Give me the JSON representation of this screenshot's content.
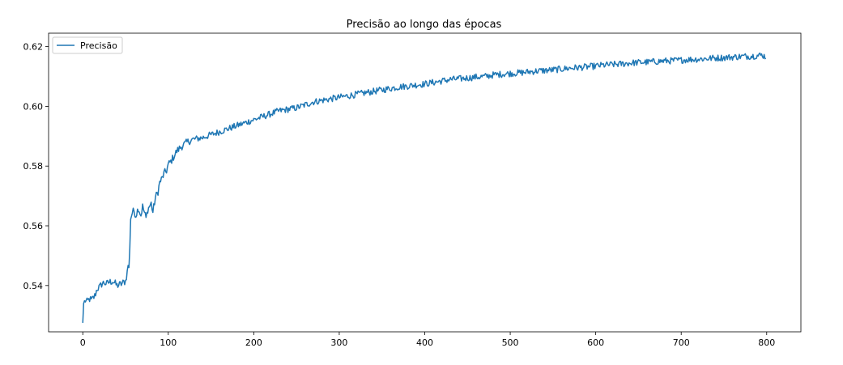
{
  "chart_data": {
    "type": "line",
    "title": "Precisão ao longo das épocas",
    "xlabel": "",
    "ylabel": "",
    "xlim": [
      -40,
      840
    ],
    "ylim": [
      0.5245,
      0.6245
    ],
    "xticks": [
      0,
      100,
      200,
      300,
      400,
      500,
      600,
      700,
      800
    ],
    "yticks": [
      0.54,
      0.56,
      0.58,
      0.6,
      0.62
    ],
    "ytick_labels": [
      "0.54",
      "0.56",
      "0.58",
      "0.60",
      "0.62"
    ],
    "legend": {
      "position": "upper-left",
      "entries": [
        "Precisão"
      ]
    },
    "grid": false,
    "series": [
      {
        "name": "Precisão",
        "color": "#1f77b4",
        "x": [
          0,
          1,
          3,
          5,
          8,
          10,
          14,
          17,
          20,
          22,
          25,
          28,
          30,
          35,
          40,
          45,
          50,
          52,
          53,
          54,
          55,
          56,
          57,
          58,
          60,
          62,
          65,
          68,
          70,
          72,
          74,
          76,
          78,
          80,
          82,
          85,
          88,
          90,
          93,
          95,
          98,
          100,
          103,
          106,
          110,
          115,
          120,
          125,
          130,
          140,
          150,
          160,
          170,
          180,
          190,
          200,
          210,
          220,
          230,
          240,
          250,
          260,
          270,
          280,
          290,
          300,
          310,
          320,
          330,
          340,
          350,
          360,
          370,
          380,
          390,
          400,
          410,
          420,
          430,
          440,
          450,
          460,
          470,
          480,
          490,
          500,
          510,
          520,
          530,
          540,
          550,
          560,
          570,
          580,
          590,
          600,
          610,
          620,
          630,
          640,
          650,
          660,
          670,
          680,
          690,
          700,
          710,
          720,
          730,
          740,
          750,
          760,
          770,
          780,
          790,
          795,
          799
        ],
        "y": [
          0.5275,
          0.534,
          0.535,
          0.5345,
          0.5355,
          0.535,
          0.5365,
          0.539,
          0.5395,
          0.5405,
          0.541,
          0.5405,
          0.541,
          0.5415,
          0.54,
          0.5405,
          0.5415,
          0.5445,
          0.547,
          0.5455,
          0.553,
          0.5625,
          0.5635,
          0.5645,
          0.565,
          0.5635,
          0.566,
          0.5635,
          0.5665,
          0.5645,
          0.5625,
          0.5655,
          0.5665,
          0.5675,
          0.5645,
          0.5695,
          0.5715,
          0.5745,
          0.576,
          0.5775,
          0.5785,
          0.5805,
          0.5815,
          0.583,
          0.585,
          0.5865,
          0.5875,
          0.5885,
          0.589,
          0.5895,
          0.5905,
          0.5915,
          0.5925,
          0.5935,
          0.5945,
          0.5955,
          0.5965,
          0.5975,
          0.5985,
          0.599,
          0.5995,
          0.6005,
          0.6015,
          0.602,
          0.6025,
          0.603,
          0.6035,
          0.604,
          0.6045,
          0.605,
          0.6055,
          0.606,
          0.6065,
          0.6068,
          0.6072,
          0.6075,
          0.608,
          0.6085,
          0.609,
          0.6092,
          0.6095,
          0.6098,
          0.61,
          0.6105,
          0.6108,
          0.611,
          0.6112,
          0.6115,
          0.6118,
          0.612,
          0.6122,
          0.6125,
          0.6128,
          0.613,
          0.6132,
          0.6135,
          0.6138,
          0.614,
          0.6142,
          0.6145,
          0.6147,
          0.6148,
          0.615,
          0.6152,
          0.6153,
          0.6155,
          0.6157,
          0.6158,
          0.616,
          0.6162,
          0.6163,
          0.6165,
          0.6167,
          0.6168,
          0.617,
          0.6172,
          0.6165
        ]
      }
    ]
  }
}
